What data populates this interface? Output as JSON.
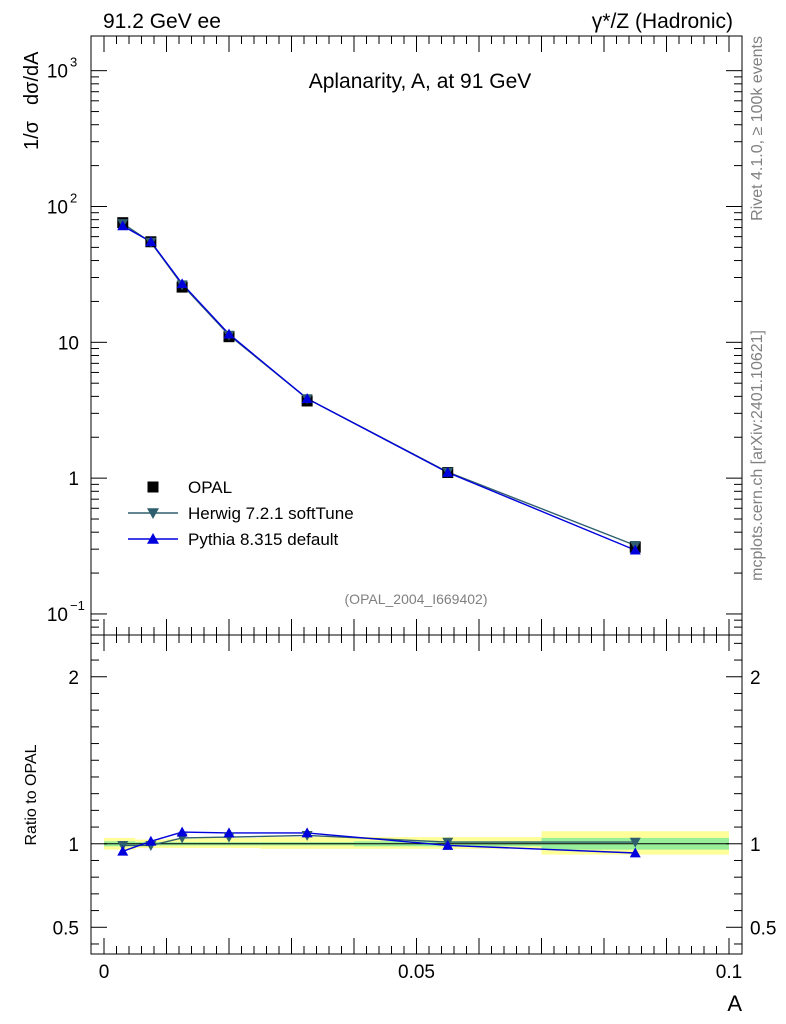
{
  "header": {
    "left": "91.2 GeV ee",
    "right": "γ*/Z (Hadronic)"
  },
  "side_text": {
    "top": "Rivet 4.1.0, ≥ 100k events",
    "bottom": "mcplots.cern.ch [arXiv:2401.10621]"
  },
  "chart_data": [
    {
      "type": "line",
      "title": "Aplanarity, A, at 91 GeV",
      "watermark": "(OPAL_2004_I669402)",
      "ylabel_parts": [
        "1/σ",
        "dσ/dA"
      ],
      "xlim": [
        0,
        0.1
      ],
      "ylim": [
        0.07,
        1800
      ],
      "yscale": "log",
      "ytick_labels": [
        {
          "v": 0.1,
          "base": "10",
          "exp": "−1"
        },
        {
          "v": 1,
          "base": "1",
          "exp": ""
        },
        {
          "v": 10,
          "base": "10",
          "exp": ""
        },
        {
          "v": 100,
          "base": "10",
          "exp": "2"
        },
        {
          "v": 1000,
          "base": "10",
          "exp": "3"
        }
      ],
      "x": [
        0.003,
        0.0075,
        0.0125,
        0.02,
        0.0325,
        0.055,
        0.085
      ],
      "series": [
        {
          "name": "OPAL",
          "marker": "square",
          "color": "#000000",
          "values": [
            76,
            55,
            25.5,
            11.0,
            3.7,
            1.1,
            0.31
          ]
        },
        {
          "name": "Herwig 7.2.1 softTune",
          "marker": "triangle-down",
          "color": "#2f5f6f",
          "values": [
            75,
            54.5,
            26.5,
            11.3,
            3.85,
            1.11,
            0.32
          ]
        },
        {
          "name": "Pythia 8.315 default",
          "marker": "triangle-up",
          "color": "#0000dd",
          "values": [
            72,
            55,
            27,
            11.5,
            3.85,
            1.1,
            0.295
          ]
        }
      ]
    },
    {
      "type": "line",
      "ylabel": "Ratio to OPAL",
      "xlabel": "A",
      "xlim": [
        0,
        0.1
      ],
      "ylim": [
        0.34,
        2.25
      ],
      "yticks": [
        0.5,
        1,
        2
      ],
      "ytick_labels": [
        "0.5",
        "1",
        "2"
      ],
      "xticks": [
        0,
        0.05,
        0.1
      ],
      "xtick_labels": [
        "0",
        "0.05",
        "0.1"
      ],
      "x": [
        0.003,
        0.0075,
        0.0125,
        0.02,
        0.0325,
        0.055,
        0.085
      ],
      "bands": [
        {
          "x0": 0,
          "x1": 0.005,
          "yellow": [
            0.965,
            1.035
          ],
          "green": [
            0.985,
            1.015
          ]
        },
        {
          "x0": 0.005,
          "x1": 0.01,
          "yellow": [
            0.975,
            1.025
          ],
          "green": [
            0.99,
            1.01
          ]
        },
        {
          "x0": 0.01,
          "x1": 0.015,
          "yellow": [
            0.975,
            1.03
          ],
          "green": [
            0.99,
            1.01
          ]
        },
        {
          "x0": 0.015,
          "x1": 0.025,
          "yellow": [
            0.975,
            1.035
          ],
          "green": [
            0.99,
            1.01
          ]
        },
        {
          "x0": 0.025,
          "x1": 0.04,
          "yellow": [
            0.97,
            1.04
          ],
          "green": [
            0.99,
            1.01
          ]
        },
        {
          "x0": 0.04,
          "x1": 0.07,
          "yellow": [
            0.97,
            1.04
          ],
          "green": [
            0.985,
            1.015
          ]
        },
        {
          "x0": 0.07,
          "x1": 0.1,
          "yellow": [
            0.935,
            1.075
          ],
          "green": [
            0.965,
            1.035
          ]
        }
      ],
      "series": [
        {
          "name": "Herwig 7.2.1 softTune",
          "marker": "triangle-down",
          "color": "#2f5f6f",
          "values": [
            0.99,
            0.99,
            1.035,
            1.04,
            1.05,
            1.01,
            1.01
          ]
        },
        {
          "name": "Pythia 8.315 default",
          "marker": "triangle-up",
          "color": "#0000dd",
          "values": [
            0.955,
            1.015,
            1.07,
            1.065,
            1.065,
            0.99,
            0.945
          ]
        }
      ]
    }
  ]
}
